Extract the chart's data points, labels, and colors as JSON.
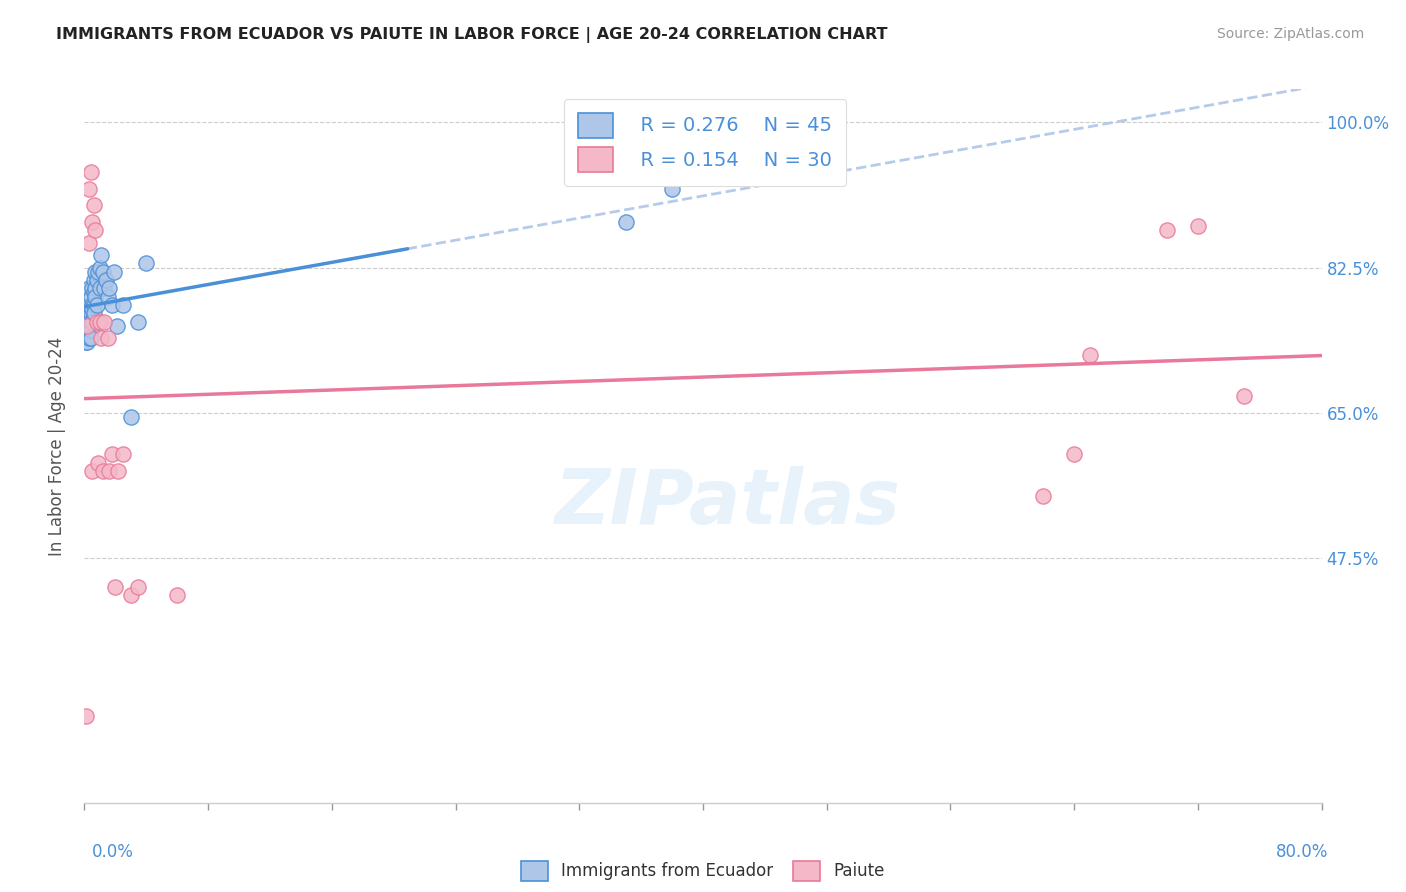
{
  "title": "IMMIGRANTS FROM ECUADOR VS PAIUTE IN LABOR FORCE | AGE 20-24 CORRELATION CHART",
  "source": "Source: ZipAtlas.com",
  "ylabel": "In Labor Force | Age 20-24",
  "watermark": "ZIPatlas",
  "legend_r1": "R = 0.276",
  "legend_n1": "N = 45",
  "legend_r2": "R = 0.154",
  "legend_n2": "N = 30",
  "ecuador_color": "#aec6e8",
  "paiute_color": "#f4b8c8",
  "line_ecuador_color": "#4a90d9",
  "line_paiute_color": "#e8799a",
  "dashed_line_color": "#aec6e8",
  "ecuador_x": [
    0.001,
    0.001,
    0.002,
    0.002,
    0.002,
    0.003,
    0.003,
    0.003,
    0.003,
    0.004,
    0.004,
    0.004,
    0.004,
    0.004,
    0.005,
    0.005,
    0.005,
    0.005,
    0.006,
    0.006,
    0.006,
    0.006,
    0.007,
    0.007,
    0.007,
    0.008,
    0.008,
    0.009,
    0.01,
    0.01,
    0.011,
    0.012,
    0.013,
    0.014,
    0.015,
    0.016,
    0.018,
    0.019,
    0.021,
    0.025,
    0.03,
    0.035,
    0.04,
    0.35,
    0.38
  ],
  "ecuador_y": [
    0.755,
    0.735,
    0.775,
    0.755,
    0.735,
    0.8,
    0.78,
    0.76,
    0.74,
    0.79,
    0.77,
    0.76,
    0.75,
    0.74,
    0.8,
    0.78,
    0.775,
    0.76,
    0.81,
    0.795,
    0.78,
    0.77,
    0.82,
    0.8,
    0.79,
    0.81,
    0.78,
    0.82,
    0.825,
    0.8,
    0.84,
    0.82,
    0.8,
    0.81,
    0.79,
    0.8,
    0.78,
    0.82,
    0.755,
    0.78,
    0.645,
    0.76,
    0.83,
    0.88,
    0.92
  ],
  "paiute_x": [
    0.001,
    0.002,
    0.003,
    0.003,
    0.004,
    0.005,
    0.005,
    0.006,
    0.007,
    0.008,
    0.009,
    0.01,
    0.011,
    0.012,
    0.013,
    0.015,
    0.016,
    0.018,
    0.02,
    0.022,
    0.025,
    0.03,
    0.035,
    0.06,
    0.62,
    0.64,
    0.65,
    0.7,
    0.72,
    0.75
  ],
  "paiute_y": [
    0.285,
    0.755,
    0.92,
    0.855,
    0.94,
    0.88,
    0.58,
    0.9,
    0.87,
    0.76,
    0.59,
    0.76,
    0.74,
    0.58,
    0.76,
    0.74,
    0.58,
    0.6,
    0.44,
    0.58,
    0.6,
    0.43,
    0.44,
    0.43,
    0.55,
    0.6,
    0.72,
    0.87,
    0.875,
    0.67
  ],
  "xlim": [
    0.0,
    0.8
  ],
  "ylim": [
    0.18,
    1.04
  ],
  "ytick_values": [
    1.0,
    0.825,
    0.65,
    0.475
  ],
  "ytick_labels": [
    "100.0%",
    "82.5%",
    "65.0%",
    "47.5%"
  ],
  "grid_color": "#cccccc",
  "grid_style": "--",
  "background_color": "#ffffff"
}
